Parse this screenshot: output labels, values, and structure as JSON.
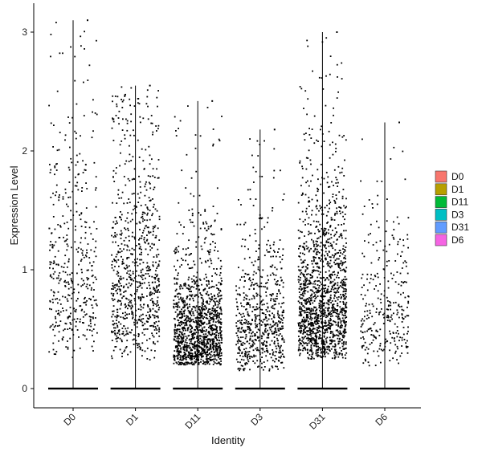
{
  "chart_data": {
    "type": "scatter",
    "subtype": "violin-jitter",
    "title": "",
    "xlabel": "Identity",
    "ylabel": "Expression Level",
    "categories": [
      "D0",
      "D1",
      "D11",
      "D3",
      "D31",
      "D6"
    ],
    "y_ticks": [
      0,
      1,
      2,
      3
    ],
    "ylim": [
      -0.18,
      3.25
    ],
    "grid": false,
    "legend": {
      "position": "right",
      "entries": [
        {
          "label": "D0",
          "color": "#F8766D"
        },
        {
          "label": "D1",
          "color": "#B79F00"
        },
        {
          "label": "D11",
          "color": "#00BA38"
        },
        {
          "label": "D3",
          "color": "#00BFC4"
        },
        {
          "label": "D31",
          "color": "#619CFF"
        },
        {
          "label": "D6",
          "color": "#F564E3"
        }
      ]
    },
    "series": [
      {
        "name": "D0",
        "max": 3.1,
        "n_nonzero": 420,
        "median_nonzero": 0.95,
        "min_nonzero": 0.25
      },
      {
        "name": "D1",
        "max": 2.55,
        "n_nonzero": 780,
        "median_nonzero": 0.95,
        "min_nonzero": 0.2
      },
      {
        "name": "D11",
        "max": 2.42,
        "n_nonzero": 1300,
        "median_nonzero": 0.5,
        "min_nonzero": 0.2
      },
      {
        "name": "D3",
        "max": 2.18,
        "n_nonzero": 650,
        "median_nonzero": 0.55,
        "min_nonzero": 0.15
      },
      {
        "name": "D31",
        "max": 3.0,
        "n_nonzero": 1450,
        "median_nonzero": 0.75,
        "min_nonzero": 0.25
      },
      {
        "name": "D6",
        "max": 2.24,
        "n_nonzero": 300,
        "median_nonzero": 0.7,
        "min_nonzero": 0.15
      }
    ],
    "point_color": "#000000"
  }
}
